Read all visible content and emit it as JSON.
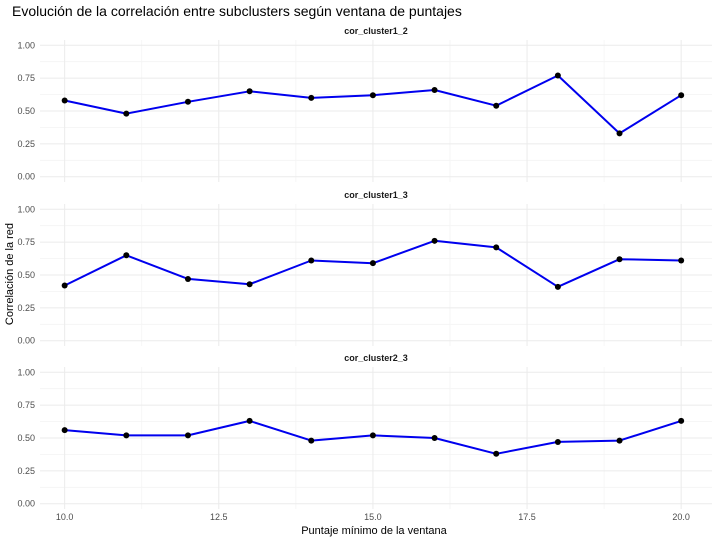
{
  "chart_data": {
    "type": "line",
    "title": "Evolución de la correlación entre subclusters según ventana de puntajes",
    "xlabel": "Puntaje mínimo de la ventana",
    "ylabel": "Correlación de la red",
    "x": [
      10,
      11,
      12,
      13,
      14,
      15,
      16,
      17,
      18,
      19,
      20
    ],
    "xlim": [
      9.6,
      20.5
    ],
    "ylim": [
      -0.04,
      1.04
    ],
    "x_ticks": [
      "10.0",
      "12.5",
      "15.0",
      "17.5",
      "20.0"
    ],
    "y_ticks": [
      "0.00",
      "0.25",
      "0.50",
      "0.75",
      "1.00"
    ],
    "grid": true,
    "line_color": "#0000ee",
    "point_color": "#000000",
    "panels": [
      {
        "name": "cor_cluster1_2",
        "values": [
          0.58,
          0.48,
          0.57,
          0.65,
          0.6,
          0.62,
          0.66,
          0.54,
          0.77,
          0.33,
          0.62
        ]
      },
      {
        "name": "cor_cluster1_3",
        "values": [
          0.42,
          0.65,
          0.47,
          0.43,
          0.61,
          0.59,
          0.76,
          0.71,
          0.41,
          0.62,
          0.61
        ]
      },
      {
        "name": "cor_cluster2_3",
        "values": [
          0.56,
          0.52,
          0.52,
          0.63,
          0.48,
          0.52,
          0.5,
          0.38,
          0.47,
          0.48,
          0.63
        ]
      }
    ]
  }
}
